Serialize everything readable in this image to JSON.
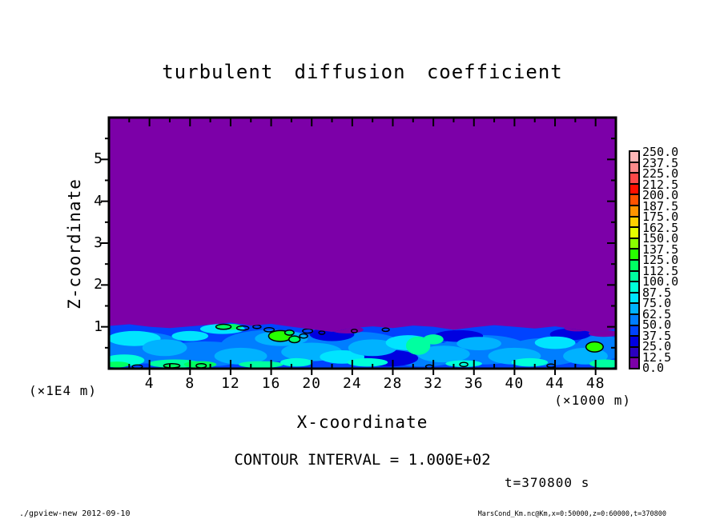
{
  "title": "turbulent diffusion coefficient",
  "axes": {
    "x": {
      "label": "X-coordinate",
      "unit_note": "(×1000 m)"
    },
    "z": {
      "label": "Z-coordinate",
      "unit_note": "(×1E4 m)"
    }
  },
  "annotations": {
    "contour_interval": "CONTOUR INTERVAL = 1.000E+02",
    "time_label": "t=370800 s"
  },
  "footer": {
    "left": "./gpview-new  2012-09-10",
    "right": "MarsCond_Km.nc@Km,x=0:50000,z=0:60000,t=370800"
  },
  "colorbar": {
    "labels_top_to_bottom": [
      "250.0",
      "237.5",
      "225.0",
      "212.5",
      "200.0",
      "187.5",
      "175.0",
      "162.5",
      "150.0",
      "137.5",
      "125.0",
      "112.5",
      "100.0",
      "87.5",
      "75.0",
      "62.5",
      "50.0",
      "37.5",
      "25.0",
      "12.5",
      "0.0"
    ],
    "colors_bottom_to_top": [
      "#7c00a8",
      "#2a00c0",
      "#0000e0",
      "#0043ff",
      "#007eff",
      "#00b2ff",
      "#00e4ff",
      "#00ffd9",
      "#00ffa0",
      "#00ff62",
      "#28ff00",
      "#8aff00",
      "#e4ff00",
      "#ffd000",
      "#ff9400",
      "#ff5200",
      "#ff0f00",
      "#ff4848",
      "#ff8a8a",
      "#ffb6b6"
    ]
  },
  "chart_data": {
    "type": "heatmap",
    "title": "turbulent diffusion coefficient",
    "xlabel": "X-coordinate",
    "x_unit": "×1000 m",
    "ylabel": "Z-coordinate",
    "y_unit": "×1E4 m",
    "xlim": [
      0,
      50
    ],
    "ylim": [
      0,
      6
    ],
    "x_major_ticks": [
      4,
      8,
      12,
      16,
      20,
      24,
      28,
      32,
      36,
      40,
      44,
      48
    ],
    "x_minor_step": 2,
    "z_major_ticks": [
      1,
      2,
      3,
      4,
      5
    ],
    "z_minor_step": 0.5,
    "value_levels": [
      0,
      12.5,
      25,
      37.5,
      50,
      62.5,
      75,
      87.5,
      100,
      112.5,
      125,
      137.5,
      150,
      162.5,
      175,
      187.5,
      200,
      212.5,
      225,
      237.5,
      250
    ],
    "contour_interval": 100,
    "legend_position": "right colorbar",
    "time": "t=370800 s",
    "field": {
      "description": "Uniform minimum bin (0-12.5, purple) everywhere above z≈1.0×1E4 m; turbulent boundary layer below z≈1.0 with values ~12.5-137.5 (blues/cyans/greens); isolated patches exceeding the 100 contour outlined in black",
      "band_top_profile": {
        "x": [
          0,
          2,
          4,
          6,
          8,
          10,
          12,
          14,
          16,
          18,
          20,
          22,
          24,
          26,
          28,
          30,
          32,
          34,
          36,
          38,
          40,
          42,
          44,
          46,
          48,
          50
        ],
        "z": [
          1.02,
          1.06,
          1.0,
          0.97,
          1.01,
          1.05,
          1.1,
          1.03,
          1.07,
          1.0,
          0.94,
          0.88,
          0.97,
          1.01,
          0.97,
          1.03,
          1.0,
          0.93,
          0.99,
          1.04,
          1.0,
          0.96,
          1.01,
          0.94,
          0.86,
          0.96
        ]
      },
      "band_base_level": 3,
      "texture_blobs": [
        {
          "x": 3,
          "z": 0.5,
          "rx": 4.5,
          "rz": 0.38,
          "level": 4
        },
        {
          "x": 9.5,
          "z": 0.35,
          "rx": 4.5,
          "rz": 0.3,
          "level": 4
        },
        {
          "x": 16,
          "z": 0.55,
          "rx": 5,
          "rz": 0.38,
          "level": 4
        },
        {
          "x": 24.5,
          "z": 0.55,
          "rx": 4.5,
          "rz": 0.33,
          "level": 4
        },
        {
          "x": 31,
          "z": 0.35,
          "rx": 4,
          "rz": 0.3,
          "level": 4
        },
        {
          "x": 37,
          "z": 0.45,
          "rx": 4.5,
          "rz": 0.35,
          "level": 4
        },
        {
          "x": 43,
          "z": 0.4,
          "rx": 4,
          "rz": 0.33,
          "level": 4
        },
        {
          "x": 48.5,
          "z": 0.5,
          "rx": 2.5,
          "rz": 0.3,
          "level": 4
        },
        {
          "x": 22,
          "z": 0.82,
          "rx": 2.2,
          "rz": 0.16,
          "level": 2
        },
        {
          "x": 34.5,
          "z": 0.78,
          "rx": 2.4,
          "rz": 0.14,
          "level": 2
        },
        {
          "x": 45.5,
          "z": 0.82,
          "rx": 2,
          "rz": 0.14,
          "level": 2
        },
        {
          "x": 27.5,
          "z": 0.25,
          "rx": 3,
          "rz": 0.2,
          "level": 2
        },
        {
          "x": 2.5,
          "z": 0.72,
          "rx": 2.6,
          "rz": 0.18,
          "level": 6
        },
        {
          "x": 5.5,
          "z": 0.5,
          "rx": 2.2,
          "rz": 0.2,
          "level": 5
        },
        {
          "x": 8,
          "z": 0.78,
          "rx": 1.8,
          "rz": 0.12,
          "level": 6
        },
        {
          "x": 11.2,
          "z": 0.95,
          "rx": 2.2,
          "rz": 0.12,
          "level": 6
        },
        {
          "x": 13,
          "z": 0.3,
          "rx": 2.6,
          "rz": 0.2,
          "level": 5
        },
        {
          "x": 17,
          "z": 0.72,
          "rx": 2.6,
          "rz": 0.18,
          "level": 5
        },
        {
          "x": 20,
          "z": 0.4,
          "rx": 3,
          "rz": 0.22,
          "level": 5
        },
        {
          "x": 23,
          "z": 0.28,
          "rx": 2.2,
          "rz": 0.16,
          "level": 6
        },
        {
          "x": 26,
          "z": 0.5,
          "rx": 2.4,
          "rz": 0.2,
          "level": 5
        },
        {
          "x": 29.5,
          "z": 0.62,
          "rx": 2.2,
          "rz": 0.18,
          "level": 6
        },
        {
          "x": 33,
          "z": 0.35,
          "rx": 2.6,
          "rz": 0.2,
          "level": 5
        },
        {
          "x": 36.5,
          "z": 0.6,
          "rx": 2.2,
          "rz": 0.16,
          "level": 5
        },
        {
          "x": 40,
          "z": 0.3,
          "rx": 2.6,
          "rz": 0.2,
          "level": 5
        },
        {
          "x": 44,
          "z": 0.62,
          "rx": 2,
          "rz": 0.15,
          "level": 6
        },
        {
          "x": 47,
          "z": 0.3,
          "rx": 2.2,
          "rz": 0.2,
          "level": 5
        },
        {
          "x": 1.5,
          "z": 0.2,
          "rx": 2,
          "rz": 0.14,
          "level": 7
        },
        {
          "x": 6.5,
          "z": 0.12,
          "rx": 2.6,
          "rz": 0.1,
          "level": 8
        },
        {
          "x": 9,
          "z": 0.1,
          "rx": 1.6,
          "rz": 0.08,
          "level": 9
        },
        {
          "x": 12,
          "z": 1.0,
          "rx": 1.1,
          "rz": 0.07,
          "level": 9
        },
        {
          "x": 15,
          "z": 0.1,
          "rx": 2.2,
          "rz": 0.08,
          "level": 8
        },
        {
          "x": 18.5,
          "z": 0.15,
          "rx": 1.6,
          "rz": 0.1,
          "level": 7
        },
        {
          "x": 25.5,
          "z": 0.15,
          "rx": 2,
          "rz": 0.1,
          "level": 7
        },
        {
          "x": 30.5,
          "z": 0.55,
          "rx": 1.2,
          "rz": 0.22,
          "level": 8
        },
        {
          "x": 32,
          "z": 0.7,
          "rx": 1,
          "rz": 0.12,
          "level": 8
        },
        {
          "x": 35,
          "z": 0.12,
          "rx": 1.8,
          "rz": 0.08,
          "level": 7
        },
        {
          "x": 41.5,
          "z": 0.15,
          "rx": 1.8,
          "rz": 0.1,
          "level": 7
        },
        {
          "x": 49,
          "z": 0.12,
          "rx": 1.6,
          "rz": 0.1,
          "level": 8
        },
        {
          "x": 0.8,
          "z": 0.1,
          "rx": 1.2,
          "rz": 0.07,
          "level": 9
        },
        {
          "x": 23.5,
          "z": 0.93,
          "rx": 1.6,
          "rz": 0.09,
          "level": 0
        },
        {
          "x": 46.2,
          "z": 0.97,
          "rx": 1.3,
          "rz": 0.08,
          "level": 0
        },
        {
          "x": 48.8,
          "z": 0.84,
          "rx": 1.5,
          "rz": 0.08,
          "level": 0
        }
      ],
      "contour_patches": [
        {
          "x": 16.9,
          "z": 0.78,
          "rx": 1.15,
          "rz": 0.13,
          "level": 10
        },
        {
          "x": 18.3,
          "z": 0.7,
          "rx": 0.55,
          "rz": 0.08,
          "level": 9
        },
        {
          "x": 17.8,
          "z": 0.86,
          "rx": 0.45,
          "rz": 0.06,
          "level": 9
        },
        {
          "x": 47.9,
          "z": 0.52,
          "rx": 0.85,
          "rz": 0.12,
          "level": 10
        },
        {
          "x": 11.3,
          "z": 1.0,
          "rx": 0.75,
          "rz": 0.06,
          "level": 9
        },
        {
          "x": 6.2,
          "z": 0.07,
          "rx": 0.8,
          "rz": 0.05,
          "level": 9
        },
        {
          "x": 9.1,
          "z": 0.07,
          "rx": 0.5,
          "rz": 0.05,
          "level": 9
        }
      ],
      "open_contours": [
        {
          "x": 13.2,
          "z": 0.97,
          "rx": 0.6,
          "rz": 0.05
        },
        {
          "x": 14.6,
          "z": 1.0,
          "rx": 0.4,
          "rz": 0.04
        },
        {
          "x": 15.8,
          "z": 0.93,
          "rx": 0.5,
          "rz": 0.05
        },
        {
          "x": 19.6,
          "z": 0.9,
          "rx": 0.5,
          "rz": 0.05
        },
        {
          "x": 21,
          "z": 0.86,
          "rx": 0.3,
          "rz": 0.04
        },
        {
          "x": 24.2,
          "z": 0.9,
          "rx": 0.3,
          "rz": 0.04
        },
        {
          "x": 27.3,
          "z": 0.93,
          "rx": 0.35,
          "rz": 0.04
        },
        {
          "x": 19.2,
          "z": 0.78,
          "rx": 0.4,
          "rz": 0.05
        },
        {
          "x": 2.8,
          "z": 0.05,
          "rx": 0.5,
          "rz": 0.04
        },
        {
          "x": 35,
          "z": 0.1,
          "rx": 0.4,
          "rz": 0.05
        },
        {
          "x": 43.6,
          "z": 0.07,
          "rx": 0.4,
          "rz": 0.04
        },
        {
          "x": 31.6,
          "z": 0.05,
          "rx": 0.35,
          "rz": 0.04
        }
      ]
    }
  }
}
